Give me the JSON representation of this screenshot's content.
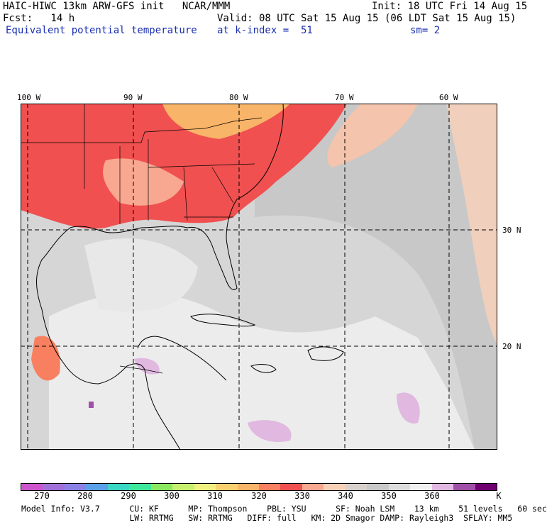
{
  "header": {
    "title_left": "HAIC-HIWC 13km ARW-GFS init   NCAR/MMM",
    "init": "Init: 18 UTC Fri 14 Aug 15",
    "fcst": "Fcst:   14 h",
    "valid": "Valid: 08 UTC Sat 15 Aug 15 (06 LDT Sat 15 Aug 15)",
    "field": "Equivalent potential temperature",
    "k_index": "at k-index =  51",
    "smooth": "sm= 2"
  },
  "map": {
    "lon_labels": [
      "100 W",
      "90 W",
      "80 W",
      "70 W",
      "60 W"
    ],
    "lat_labels": [
      "30 N",
      "20 N"
    ]
  },
  "colorbar": {
    "ticks": [
      "270",
      "280",
      "290",
      "300",
      "310",
      "320",
      "330",
      "340",
      "350",
      "360"
    ],
    "unit": "K",
    "colors": [
      "#cc55cc",
      "#a070d8",
      "#8a80e6",
      "#5aa0e8",
      "#3cd6c4",
      "#3ee89a",
      "#8ae860",
      "#c8f070",
      "#f0f080",
      "#f8d070",
      "#f8b468",
      "#f88060",
      "#f05050",
      "#f8a890",
      "#f8d0b8",
      "#d8d0cc",
      "#c8c8c8",
      "#dcdcdc",
      "#f0f0f0",
      "#e0b8e0",
      "#a050a8",
      "#700070"
    ],
    "colors_note": ""
  },
  "model_info": {
    "line1": "Model Info: V3.7      CU: KF      MP: Thompson    PBL: YSU      SF: Noah LSM    13 km    51 levels   60 sec",
    "line2": "                      LW: RRTMG   SW: RRTMG   DIFF: full   KM: 2D Smagor DAMP: Rayleigh3  SFLAY: MM5"
  }
}
